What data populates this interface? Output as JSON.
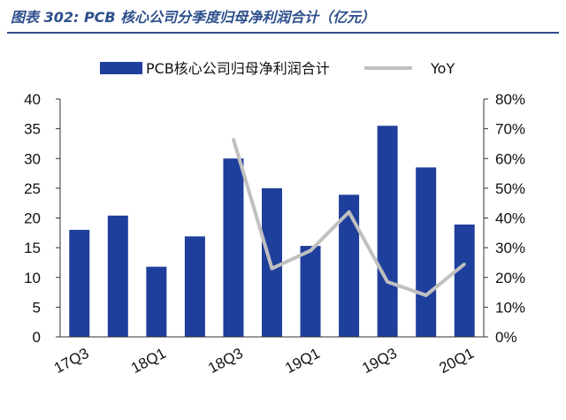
{
  "figure": {
    "title": "图表 302:  PCB 核心公司分季度归母净利润合计（亿元）"
  },
  "chart_data": {
    "type": "bar",
    "categories": [
      "17Q3",
      "17Q4",
      "18Q1",
      "18Q2",
      "18Q3",
      "18Q4",
      "19Q1",
      "19Q2",
      "19Q3",
      "19Q4",
      "20Q1"
    ],
    "x_tick_labels": [
      "17Q3",
      "18Q1",
      "18Q3",
      "19Q1",
      "19Q3",
      "20Q1"
    ],
    "series": [
      {
        "name": "PCB核心公司归母净利润合计",
        "type": "bar",
        "axis": "left",
        "color": "#1f3f9c",
        "values": [
          18.0,
          20.4,
          11.8,
          16.9,
          30.0,
          25.0,
          15.3,
          23.9,
          35.5,
          28.5,
          18.9
        ]
      },
      {
        "name": "YoY",
        "type": "line",
        "axis": "right",
        "color": "#c0c0c0",
        "values": [
          null,
          null,
          null,
          null,
          0.665,
          0.23,
          0.29,
          0.42,
          0.185,
          0.14,
          0.245
        ]
      }
    ],
    "ylim_left": [
      0,
      40
    ],
    "yticks_left": [
      "0",
      "5",
      "10",
      "15",
      "20",
      "25",
      "30",
      "35",
      "40"
    ],
    "ylim_right": [
      0,
      0.8
    ],
    "yticks_right": [
      "0%",
      "10%",
      "20%",
      "30%",
      "40%",
      "50%",
      "60%",
      "70%",
      "80%"
    ],
    "legend_position": "top",
    "grid": false
  }
}
